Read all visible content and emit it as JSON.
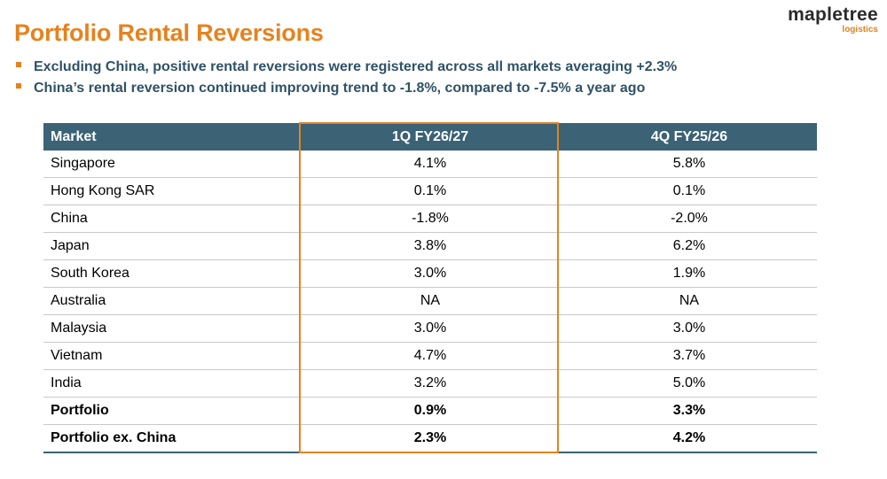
{
  "title": "Portfolio Rental Reversions",
  "bullets": [
    "Excluding China, positive rental reversions were registered across all markets averaging +2.3%",
    "China’s rental reversion continued improving trend to -1.8%, compared to -7.5% a year ago"
  ],
  "logo": {
    "main": "mapletree",
    "sub": "logistics"
  },
  "table": {
    "headers": [
      "Market",
      "1Q FY26/27",
      "4Q FY25/26"
    ],
    "rows": [
      [
        "Singapore",
        "4.1%",
        "5.8%"
      ],
      [
        "Hong Kong SAR",
        "0.1%",
        "0.1%"
      ],
      [
        "China",
        "-1.8%",
        "-2.0%"
      ],
      [
        "Japan",
        "3.8%",
        "6.2%"
      ],
      [
        "South Korea",
        "3.0%",
        "1.9%"
      ],
      [
        "Australia",
        "NA",
        "NA"
      ],
      [
        "Malaysia",
        "3.0%",
        "3.0%"
      ],
      [
        "Vietnam",
        "4.7%",
        "3.7%"
      ],
      [
        "India",
        "3.2%",
        "5.0%"
      ],
      [
        "Portfolio",
        "0.9%",
        "3.3%"
      ],
      [
        "Portfolio ex. China",
        "2.3%",
        "4.2%"
      ]
    ]
  },
  "colors": {
    "accent": "#e6821e",
    "header_bg": "#3b6275",
    "bullet_text": "#2f5266"
  }
}
